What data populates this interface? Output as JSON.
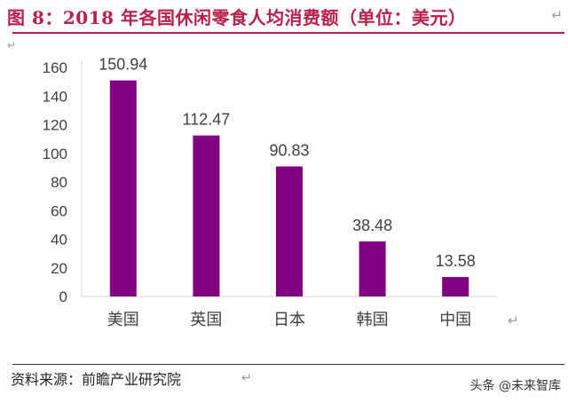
{
  "header": {
    "title": "图 8：2018 年各国休闲零食人均消费额（单位：美元）",
    "return_mark": "↵"
  },
  "source": {
    "text": "资料来源：前瞻产业研究院"
  },
  "watermark": {
    "text": "头条 @未来智库"
  },
  "colors": {
    "bar": "#800080",
    "title": "#b8204a",
    "axis": "#d9d9d9",
    "label": "#404040"
  },
  "chart_data": {
    "type": "bar",
    "categories": [
      "美国",
      "英国",
      "日本",
      "韩国",
      "中国"
    ],
    "values": [
      150.94,
      112.47,
      90.83,
      38.48,
      13.58
    ],
    "data_labels": [
      "150.94",
      "112.47",
      "90.83",
      "38.48",
      "13.58"
    ],
    "yticks": [
      0,
      20,
      40,
      60,
      80,
      100,
      120,
      140,
      160
    ],
    "ylim": [
      0,
      160
    ],
    "grid": false,
    "legend": false
  }
}
